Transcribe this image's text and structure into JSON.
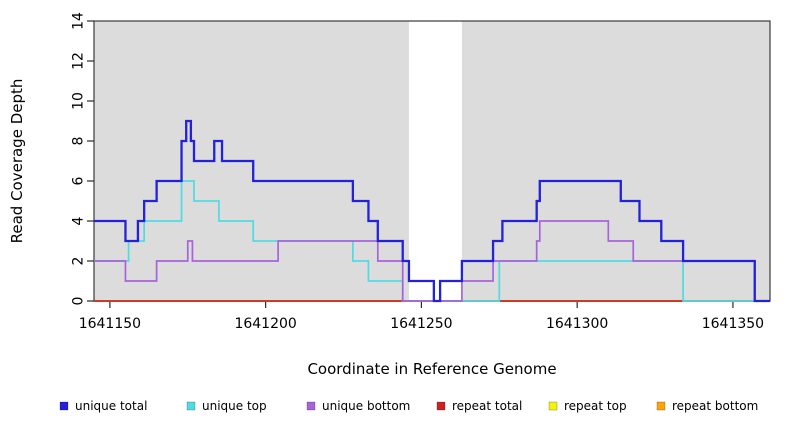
{
  "chart_data": {
    "type": "line",
    "step": true,
    "title": "",
    "xlabel": "Coordinate in Reference Genome",
    "ylabel": "Read Coverage Depth",
    "xlim": [
      1641144.9,
      1641361.9
    ],
    "ylim": [
      0,
      14
    ],
    "x_ticks": [
      1641150,
      1641200,
      1641250,
      1641300,
      1641350
    ],
    "y_ticks": [
      0,
      2,
      4,
      6,
      8,
      10,
      12,
      14
    ],
    "plot_background": "#dcdcdc",
    "mask_region": {
      "from": 1641246,
      "to": 1641263,
      "color": "#ffffff"
    },
    "series": [
      {
        "name": "repeat bottom",
        "color": "#ffa407",
        "points": [
          [
            1641144.9,
            0
          ]
        ]
      },
      {
        "name": "repeat top",
        "color": "#f2f20a",
        "points": [
          [
            1641144.9,
            0
          ]
        ]
      },
      {
        "name": "repeat total",
        "color": "#cc2222",
        "points": [
          [
            1641144.9,
            0
          ]
        ]
      },
      {
        "name": "unique top",
        "color": "#4fdbe3",
        "points": [
          [
            1641144.9,
            2
          ],
          [
            1641156,
            3
          ],
          [
            1641161,
            4
          ],
          [
            1641173,
            6
          ],
          [
            1641177,
            5
          ],
          [
            1641185,
            4
          ],
          [
            1641196,
            3
          ],
          [
            1641228,
            2
          ],
          [
            1641233,
            1
          ],
          [
            1641244,
            0
          ],
          [
            1641275,
            2
          ],
          [
            1641334,
            0
          ]
        ]
      },
      {
        "name": "unique bottom",
        "color": "#a863dc",
        "points": [
          [
            1641144.9,
            2
          ],
          [
            1641155,
            1
          ],
          [
            1641165,
            2
          ],
          [
            1641175,
            3
          ],
          [
            1641176.5,
            2
          ],
          [
            1641204,
            3
          ],
          [
            1641236,
            2
          ],
          [
            1641244,
            0
          ],
          [
            1641263,
            1
          ],
          [
            1641273,
            2
          ],
          [
            1641287,
            3
          ],
          [
            1641288,
            4
          ],
          [
            1641310,
            3
          ],
          [
            1641318,
            2
          ],
          [
            1641357,
            0
          ]
        ]
      },
      {
        "name": "unique total",
        "color": "#2222dd",
        "points": [
          [
            1641144.9,
            4
          ],
          [
            1641155,
            3
          ],
          [
            1641159,
            4
          ],
          [
            1641161,
            5
          ],
          [
            1641165,
            6
          ],
          [
            1641173,
            8
          ],
          [
            1641174.5,
            9
          ],
          [
            1641176,
            8
          ],
          [
            1641177,
            7
          ],
          [
            1641183.5,
            8
          ],
          [
            1641186,
            7
          ],
          [
            1641196,
            6
          ],
          [
            1641228,
            5
          ],
          [
            1641233,
            4
          ],
          [
            1641236,
            3
          ],
          [
            1641244,
            2
          ],
          [
            1641246,
            1
          ],
          [
            1641254,
            0
          ],
          [
            1641256,
            1
          ],
          [
            1641263,
            2
          ],
          [
            1641273,
            3
          ],
          [
            1641276,
            4
          ],
          [
            1641287,
            5
          ],
          [
            1641288,
            6
          ],
          [
            1641314,
            5
          ],
          [
            1641320,
            4
          ],
          [
            1641327,
            3
          ],
          [
            1641334,
            2
          ],
          [
            1641357,
            0
          ]
        ]
      }
    ],
    "legend": {
      "items": [
        {
          "label": "unique total",
          "color": "#2222dd"
        },
        {
          "label": "unique top",
          "color": "#4fdbe3"
        },
        {
          "label": "unique bottom",
          "color": "#a863dc"
        },
        {
          "label": "repeat total",
          "color": "#cc2222"
        },
        {
          "label": "repeat top",
          "color": "#f2f20a"
        },
        {
          "label": "repeat bottom",
          "color": "#ffa407"
        }
      ],
      "position": "bottom"
    }
  }
}
